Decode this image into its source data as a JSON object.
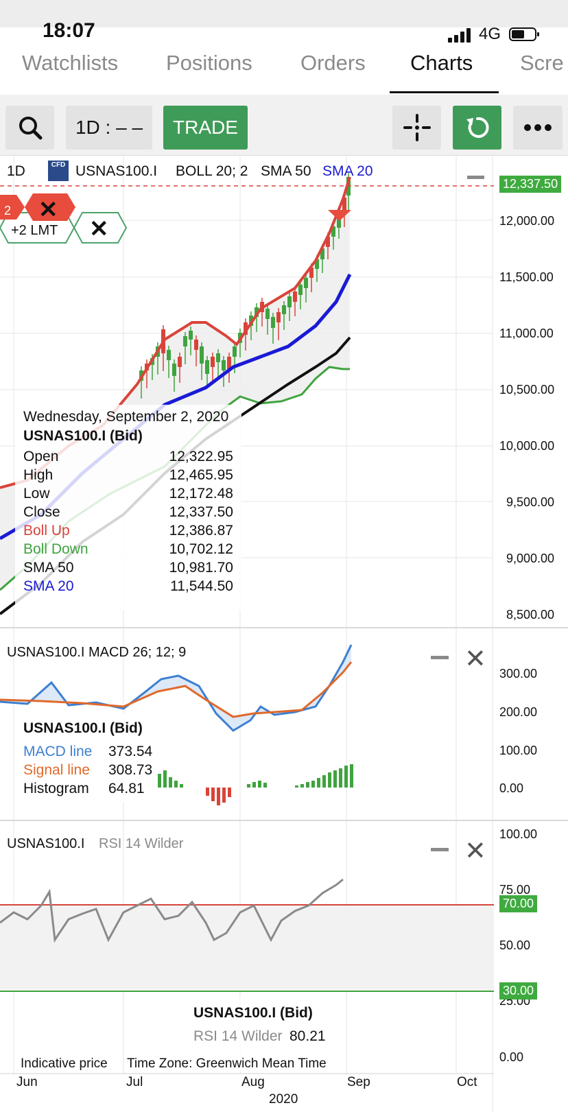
{
  "status": {
    "time": "18:07",
    "network": "4G"
  },
  "tabs": [
    {
      "label": "Watchlists",
      "active": false
    },
    {
      "label": "Positions",
      "active": false
    },
    {
      "label": "Orders",
      "active": false
    },
    {
      "label": "Charts",
      "active": true
    },
    {
      "label": "Scre",
      "active": false
    }
  ],
  "toolbar": {
    "timeframe": "1D : – –",
    "trade_label": "TRADE"
  },
  "main_chart": {
    "interval": "1D",
    "cfd_badge": "CFD",
    "symbol": "USNAS100.I",
    "indicators": [
      "BOLL 20; 2",
      "SMA 50",
      "SMA 20"
    ],
    "last_price": "12,337.50",
    "y_ticks": [
      "12,000.00",
      "11,500.00",
      "11,000.00",
      "10,500.00",
      "10,000.00",
      "9,500.00",
      "9,000.00",
      "8,500.00"
    ],
    "order_badge_count": "2",
    "order_label": "+2 LMT",
    "tooltip": {
      "date": "Wednesday, September 2, 2020",
      "title": "USNAS100.I (Bid)",
      "rows": [
        {
          "label": "Open",
          "value": "12,322.95",
          "color": "#111111"
        },
        {
          "label": "High",
          "value": "12,465.95",
          "color": "#111111"
        },
        {
          "label": "Low",
          "value": "12,172.48",
          "color": "#111111"
        },
        {
          "label": "Close",
          "value": "12,337.50",
          "color": "#111111"
        },
        {
          "label": "Boll Up",
          "value": "12,386.87",
          "color": "#d9443a"
        },
        {
          "label": "Boll Down",
          "value": "10,702.12",
          "color": "#3fa33f"
        },
        {
          "label": "SMA 50",
          "value": "10,981.70",
          "color": "#111111"
        },
        {
          "label": "SMA 20",
          "value": "11,544.50",
          "color": "#1a1ad6"
        }
      ]
    }
  },
  "macd_panel": {
    "title": "USNAS100.I  MACD 26; 12; 9",
    "y_ticks": [
      "300.00",
      "200.00",
      "100.00",
      "0.00"
    ],
    "tooltip": {
      "title": "USNAS100.I (Bid)",
      "rows": [
        {
          "label": "MACD line",
          "value": "373.54",
          "color": "#3d7fd0"
        },
        {
          "label": "Signal line",
          "value": "308.73",
          "color": "#e0692a"
        },
        {
          "label": "Histogram",
          "value": "64.81",
          "color": "#111111"
        }
      ]
    }
  },
  "rsi_panel": {
    "symbol": "USNAS100.I",
    "indicator": "RSI 14 Wilder",
    "y_ticks": [
      "100.00",
      "75.00",
      "50.00",
      "25.00",
      "0.00"
    ],
    "upper_level": "70.00",
    "lower_level": "30.00",
    "tooltip": {
      "title": "USNAS100.I (Bid)",
      "label": "RSI 14 Wilder",
      "value": "80.21"
    }
  },
  "footer": {
    "indicative": "Indicative price",
    "timezone": "Time Zone: Greenwich Mean Time",
    "months": [
      "Jun",
      "Jul",
      "Aug",
      "Sep",
      "Oct"
    ],
    "year": "2020"
  },
  "colors": {
    "green_button": "#3f9b58",
    "boll_band": "#d9443a",
    "boll_lower": "#3fa33f",
    "sma20": "#1a1ad6",
    "sma50": "#111111",
    "macd": "#3d7fd0",
    "signal": "#e0692a"
  }
}
